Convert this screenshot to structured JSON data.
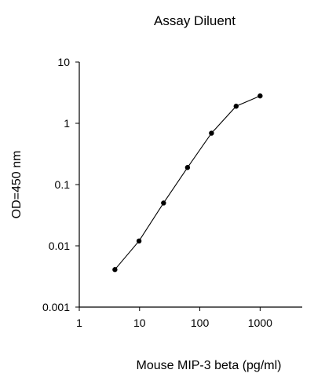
{
  "chart_data": {
    "type": "line",
    "title": "Assay Diluent",
    "xlabel": "Mouse MIP-3 beta (pg/ml)",
    "ylabel": "OD=450 nm",
    "x_scale": "log",
    "y_scale": "log",
    "xlim": [
      1,
      5000
    ],
    "ylim": [
      0.001,
      10
    ],
    "x_ticks": [
      1,
      10,
      100,
      1000
    ],
    "x_tick_labels": [
      "1",
      "10",
      "100",
      "1000"
    ],
    "y_ticks": [
      0.001,
      0.01,
      0.1,
      1,
      10
    ],
    "y_tick_labels": [
      "0.001",
      "0.01",
      "0.1",
      "1",
      "10"
    ],
    "grid": false,
    "series": [
      {
        "x": [
          3.9,
          9.8,
          25,
          62.5,
          156,
          400,
          1000
        ],
        "y": [
          0.0041,
          0.012,
          0.05,
          0.19,
          0.69,
          1.9,
          2.8
        ]
      }
    ]
  }
}
